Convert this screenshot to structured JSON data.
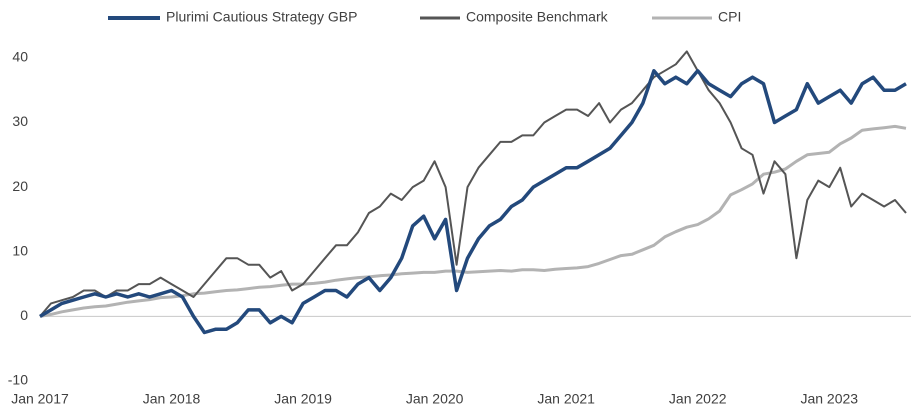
{
  "chart_data": {
    "type": "line",
    "x": [
      "2017-01",
      "2017-02",
      "2017-03",
      "2017-04",
      "2017-05",
      "2017-06",
      "2017-07",
      "2017-08",
      "2017-09",
      "2017-10",
      "2017-11",
      "2017-12",
      "2018-01",
      "2018-02",
      "2018-03",
      "2018-04",
      "2018-05",
      "2018-06",
      "2018-07",
      "2018-08",
      "2018-09",
      "2018-10",
      "2018-11",
      "2018-12",
      "2019-01",
      "2019-02",
      "2019-03",
      "2019-04",
      "2019-05",
      "2019-06",
      "2019-07",
      "2019-08",
      "2019-09",
      "2019-10",
      "2019-11",
      "2019-12",
      "2020-01",
      "2020-02",
      "2020-03",
      "2020-04",
      "2020-05",
      "2020-06",
      "2020-07",
      "2020-08",
      "2020-09",
      "2020-10",
      "2020-11",
      "2020-12",
      "2021-01",
      "2021-02",
      "2021-03",
      "2021-04",
      "2021-05",
      "2021-06",
      "2021-07",
      "2021-08",
      "2021-09",
      "2021-10",
      "2021-11",
      "2021-12",
      "2022-01",
      "2022-02",
      "2022-03",
      "2022-04",
      "2022-05",
      "2022-06",
      "2022-07",
      "2022-08",
      "2022-09",
      "2022-10",
      "2022-11",
      "2022-12",
      "2023-01",
      "2023-02",
      "2023-03",
      "2023-04",
      "2023-05",
      "2023-06",
      "2023-07",
      "2023-08"
    ],
    "series": [
      {
        "name": "Plurimi Cautious Strategy GBP",
        "color": "#23497c",
        "values": [
          0,
          1,
          2,
          2.5,
          3,
          3.5,
          3,
          3.5,
          3,
          3.5,
          3,
          3.5,
          4,
          3,
          0,
          -2.5,
          -2,
          -2,
          -1,
          1,
          1,
          -1,
          0,
          -1,
          2,
          3,
          4,
          4,
          3,
          5,
          6,
          4,
          6,
          9,
          14,
          15.5,
          12,
          15,
          4,
          9,
          12,
          14,
          15,
          17,
          18,
          20,
          21,
          22,
          23,
          23,
          24,
          25,
          26,
          28,
          30,
          33,
          38,
          36,
          37,
          36,
          38,
          36,
          35,
          34,
          36,
          37,
          36,
          30,
          31,
          32,
          36,
          33,
          34,
          35,
          33,
          36,
          37,
          35,
          35,
          36
        ]
      },
      {
        "name": "Composite Benchmark",
        "color": "#555555",
        "values": [
          0,
          2,
          2.5,
          3,
          4,
          4,
          3,
          4,
          4,
          5,
          5,
          6,
          5,
          4,
          3,
          5,
          7,
          9,
          9,
          8,
          8,
          6,
          7,
          4,
          5,
          7,
          9,
          11,
          11,
          13,
          16,
          17,
          19,
          18,
          20,
          21,
          24,
          20,
          8,
          20,
          23,
          25,
          27,
          27,
          28,
          28,
          30,
          31,
          32,
          32,
          31,
          33,
          30,
          32,
          33,
          35,
          37,
          38,
          39,
          41,
          38,
          35,
          33,
          30,
          26,
          25,
          19,
          24,
          22,
          9,
          18,
          21,
          20,
          23,
          17,
          19,
          18,
          17,
          18,
          16
        ]
      },
      {
        "name": "CPI",
        "color": "#b3b3b3",
        "values": [
          0,
          0.3,
          0.7,
          1,
          1.3,
          1.5,
          1.6,
          1.9,
          2.2,
          2.4,
          2.6,
          2.9,
          3,
          3.2,
          3.5,
          3.6,
          3.8,
          4,
          4.1,
          4.3,
          4.5,
          4.6,
          4.8,
          5,
          5,
          5.1,
          5.3,
          5.6,
          5.8,
          6,
          6.1,
          6.3,
          6.4,
          6.6,
          6.7,
          6.8,
          6.8,
          7,
          7,
          6.8,
          6.9,
          7,
          7.1,
          7,
          7.2,
          7.2,
          7.1,
          7.3,
          7.4,
          7.5,
          7.7,
          8.2,
          8.8,
          9.4,
          9.6,
          10.3,
          11,
          12.3,
          13.1,
          13.8,
          14.2,
          15.1,
          16.3,
          18.8,
          19.6,
          20.5,
          22,
          22.3,
          22.8,
          24,
          25,
          25.2,
          25.4,
          26.7,
          27.6,
          28.8,
          29,
          29.2,
          29.4,
          29.1
        ]
      }
    ],
    "xlim": [
      "2017-01",
      "2023-08"
    ],
    "xticks": [
      {
        "value": "2017-01",
        "label": "Jan 2017"
      },
      {
        "value": "2018-01",
        "label": "Jan 2018"
      },
      {
        "value": "2019-01",
        "label": "Jan 2019"
      },
      {
        "value": "2020-01",
        "label": "Jan 2020"
      },
      {
        "value": "2021-01",
        "label": "Jan 2021"
      },
      {
        "value": "2022-01",
        "label": "Jan 2022"
      },
      {
        "value": "2023-01",
        "label": "Jan 2023"
      }
    ],
    "ylim": [
      -10,
      44
    ],
    "yticks": [
      -10,
      0,
      10,
      20,
      30,
      40
    ],
    "legend": "top"
  }
}
